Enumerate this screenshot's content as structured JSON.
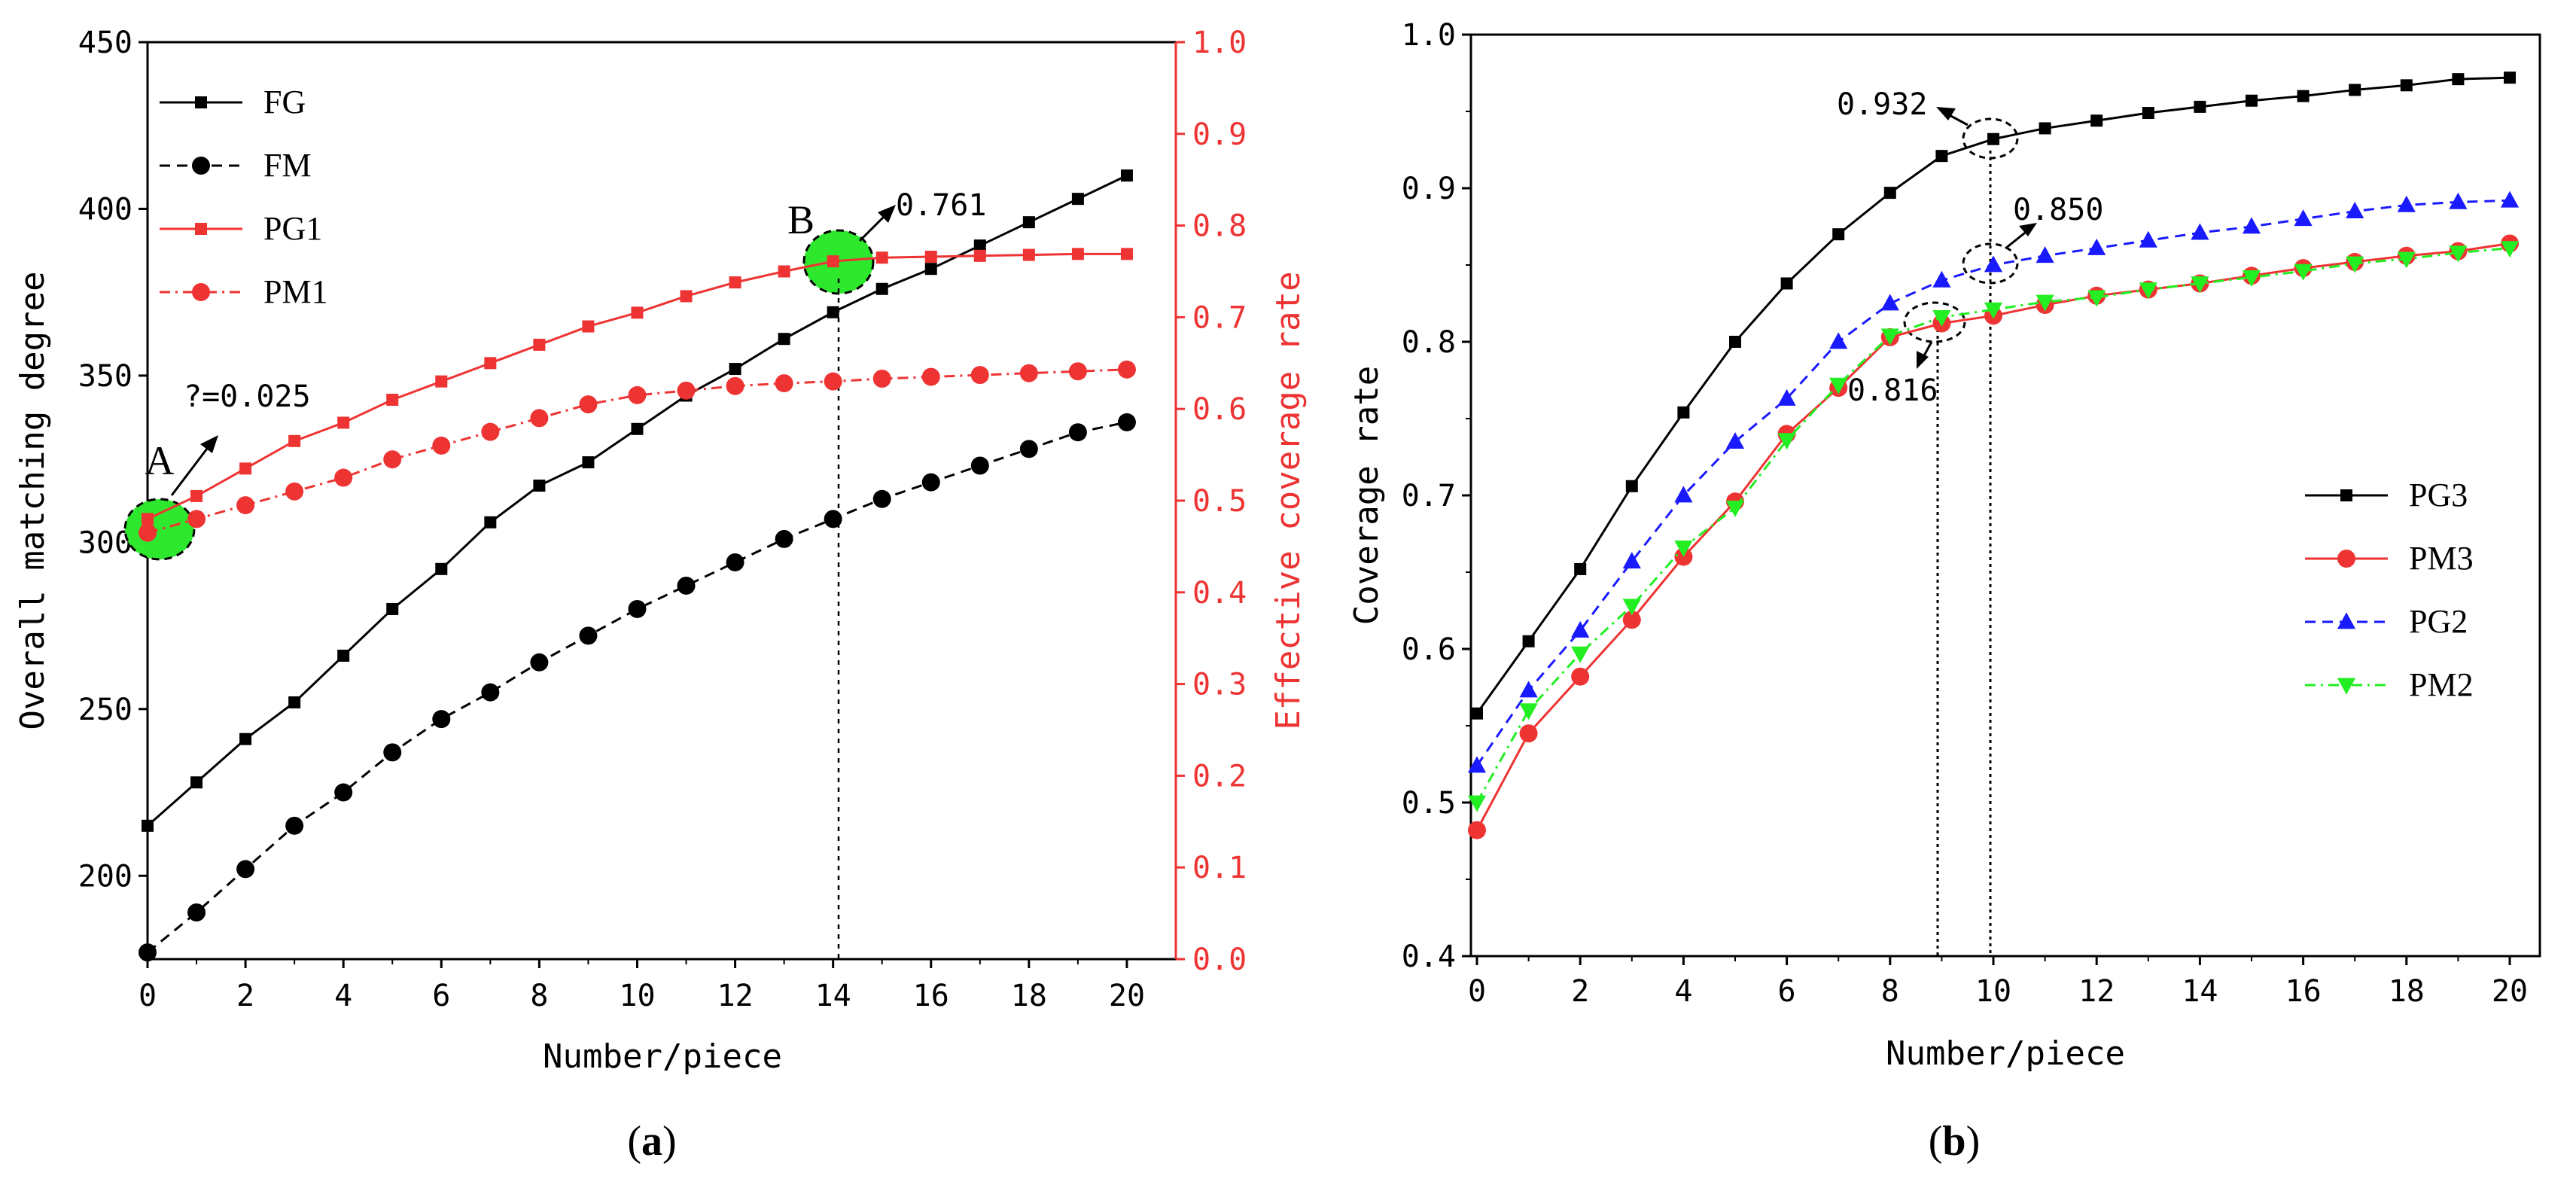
{
  "colors": {
    "black": "#000000",
    "red": "#ee3333",
    "blue": "#1a1aff",
    "green": "#22ee22",
    "highlight": "#2ee82e"
  },
  "chart_data": [
    {
      "id": "a",
      "type": "line",
      "caption": "(a)",
      "xlabel": "Number/piece",
      "ylabel_left": "Overall matching degree",
      "ylabel_right": "Effective coverage rate",
      "xlim": [
        0,
        21
      ],
      "xticks": [
        0,
        2,
        4,
        6,
        8,
        10,
        12,
        14,
        16,
        18,
        20
      ],
      "ylim_left": [
        175,
        450
      ],
      "yticks_left": [
        200,
        250,
        300,
        350,
        400,
        450
      ],
      "ylim_right": [
        0.0,
        1.0
      ],
      "yticks_right": [
        "0.0",
        "0.1",
        "0.2",
        "0.3",
        "0.4",
        "0.5",
        "0.6",
        "0.7",
        "0.8",
        "0.9",
        "1.0"
      ],
      "x": [
        0,
        1,
        2,
        3,
        4,
        5,
        6,
        7,
        8,
        9,
        10,
        11,
        12,
        13,
        14,
        15,
        16,
        17,
        18,
        19,
        20
      ],
      "series": [
        {
          "name": "FG",
          "axis": "left",
          "color": "#000000",
          "marker": "square",
          "dash": "solid",
          "values": [
            215,
            228,
            241,
            252,
            266,
            280,
            292,
            306,
            317,
            324,
            334,
            344,
            352,
            361,
            369,
            376,
            382,
            389,
            396,
            403,
            410
          ]
        },
        {
          "name": "FM",
          "axis": "left",
          "color": "#000000",
          "marker": "circle",
          "dash": "dash",
          "values": [
            177,
            189,
            202,
            215,
            225,
            237,
            247,
            255,
            264,
            272,
            280,
            287,
            294,
            301,
            307,
            313,
            318,
            323,
            328,
            333,
            336
          ]
        },
        {
          "name": "PG1",
          "axis": "right",
          "color": "#ee3333",
          "marker": "square",
          "dash": "solid",
          "values": [
            0.48,
            0.505,
            0.535,
            0.565,
            0.585,
            0.61,
            0.63,
            0.65,
            0.67,
            0.69,
            0.705,
            0.723,
            0.738,
            0.75,
            0.761,
            0.765,
            0.766,
            0.767,
            0.768,
            0.769,
            0.769
          ]
        },
        {
          "name": "PM1",
          "axis": "right",
          "color": "#ee3333",
          "marker": "circle",
          "dash": "dashdot",
          "values": [
            0.465,
            0.48,
            0.495,
            0.51,
            0.525,
            0.545,
            0.56,
            0.575,
            0.59,
            0.605,
            0.615,
            0.62,
            0.625,
            0.628,
            0.63,
            0.633,
            0.635,
            0.637,
            0.639,
            0.641,
            0.643
          ]
        }
      ],
      "annotations": {
        "a_letter": "A",
        "a_value": "?=0.025",
        "b_letter": "B",
        "b_value": "0.761"
      }
    },
    {
      "id": "b",
      "type": "line",
      "caption": "(b)",
      "xlabel": "Number/piece",
      "ylabel": "Coverage rate",
      "xlim": [
        0,
        20
      ],
      "xticks": [
        0,
        2,
        4,
        6,
        8,
        10,
        12,
        14,
        16,
        18,
        20
      ],
      "ylim": [
        0.4,
        1.0
      ],
      "yticks": [
        "0.4",
        "0.5",
        "0.6",
        "0.7",
        "0.8",
        "0.9",
        "1.0"
      ],
      "x": [
        0,
        1,
        2,
        3,
        4,
        5,
        6,
        7,
        8,
        9,
        10,
        11,
        12,
        13,
        14,
        15,
        16,
        17,
        18,
        19,
        20
      ],
      "series": [
        {
          "name": "PG3",
          "color": "#000000",
          "marker": "square",
          "dash": "solid",
          "values": [
            0.558,
            0.605,
            0.652,
            0.706,
            0.754,
            0.8,
            0.838,
            0.87,
            0.897,
            0.921,
            0.932,
            0.939,
            0.944,
            0.949,
            0.953,
            0.957,
            0.96,
            0.964,
            0.967,
            0.971,
            0.972
          ]
        },
        {
          "name": "PM3",
          "color": "#ee3333",
          "marker": "circle",
          "dash": "solid",
          "values": [
            0.482,
            0.545,
            0.582,
            0.619,
            0.66,
            0.696,
            0.74,
            0.77,
            0.803,
            0.812,
            0.817,
            0.824,
            0.83,
            0.834,
            0.838,
            0.843,
            0.848,
            0.852,
            0.856,
            0.859,
            0.864
          ]
        },
        {
          "name": "PG2",
          "color": "#1a1aff",
          "marker": "triangle-up",
          "dash": "dash",
          "values": [
            0.524,
            0.573,
            0.612,
            0.657,
            0.7,
            0.735,
            0.763,
            0.8,
            0.825,
            0.84,
            0.85,
            0.856,
            0.861,
            0.866,
            0.871,
            0.875,
            0.88,
            0.885,
            0.889,
            0.891,
            0.892
          ]
        },
        {
          "name": "PM2",
          "color": "#22ee22",
          "marker": "triangle-down",
          "dash": "dashdot",
          "values": [
            0.5,
            0.56,
            0.597,
            0.628,
            0.666,
            0.692,
            0.736,
            0.772,
            0.804,
            0.816,
            0.821,
            0.826,
            0.829,
            0.834,
            0.838,
            0.842,
            0.846,
            0.851,
            0.854,
            0.858,
            0.861
          ]
        }
      ],
      "annotations": {
        "v1": "0.932",
        "v2": "0.850",
        "v3": "0.816"
      }
    }
  ]
}
